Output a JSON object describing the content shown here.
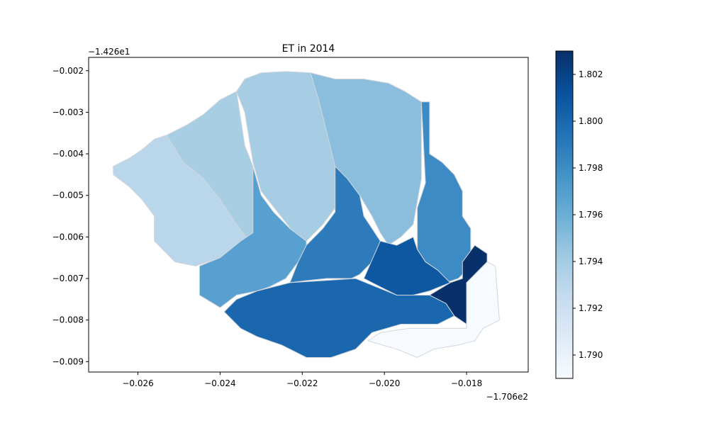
{
  "chart_data": {
    "type": "choropleth",
    "title": "ET in 2014",
    "xlabel": "",
    "ylabel": "",
    "x_offset_label": "−1.706e2",
    "y_offset_label": "−1.426e1",
    "xlim": [
      -0.0272,
      -0.0165
    ],
    "ylim": [
      -0.00925,
      -0.00168
    ],
    "xticks": [
      -0.026,
      -0.024,
      -0.022,
      -0.02,
      -0.018
    ],
    "xtick_labels": [
      "−0.026",
      "−0.024",
      "−0.022",
      "−0.020",
      "−0.018"
    ],
    "yticks": [
      -0.002,
      -0.003,
      -0.004,
      -0.005,
      -0.006,
      -0.007,
      -0.008,
      -0.009
    ],
    "ytick_labels": [
      "−0.002",
      "−0.003",
      "−0.004",
      "−0.005",
      "−0.006",
      "−0.007",
      "−0.008",
      "−0.009"
    ],
    "grid": false,
    "colormap": "Blues",
    "colorbar": {
      "min": 1.789,
      "max": 1.803,
      "ticks": [
        1.79,
        1.792,
        1.794,
        1.796,
        1.798,
        1.8,
        1.802
      ],
      "tick_labels": [
        "1.790",
        "1.792",
        "1.794",
        "1.796",
        "1.798",
        "1.800",
        "1.802"
      ]
    },
    "colors": {
      "edge": "#d0d6dc",
      "frame": "#000000"
    },
    "regions": [
      {
        "id": "west",
        "value": 1.7925,
        "color": "#bad6eb",
        "polygon": [
          [
            -0.0266,
            -0.0043
          ],
          [
            -0.0264,
            -0.0042
          ],
          [
            -0.0262,
            -0.0041
          ],
          [
            -0.0259,
            -0.0039
          ],
          [
            -0.0256,
            -0.00365
          ],
          [
            -0.0253,
            -0.00355
          ],
          [
            -0.0249,
            -0.0039
          ],
          [
            -0.0244,
            -0.0043
          ],
          [
            -0.024,
            -0.0047
          ],
          [
            -0.0235,
            -0.0052
          ],
          [
            -0.023,
            -0.0059
          ],
          [
            -0.0235,
            -0.0062
          ],
          [
            -0.024,
            -0.0065
          ],
          [
            -0.0246,
            -0.0067
          ],
          [
            -0.0251,
            -0.0066
          ],
          [
            -0.0256,
            -0.0061
          ],
          [
            -0.0256,
            -0.0055
          ],
          [
            -0.0259,
            -0.0051
          ],
          [
            -0.0262,
            -0.0048
          ],
          [
            -0.0266,
            -0.0045
          ]
        ]
      },
      {
        "id": "northwest",
        "value": 1.7938,
        "color": "#a8cee4",
        "polygon": [
          [
            -0.0253,
            -0.00355
          ],
          [
            -0.0248,
            -0.0033
          ],
          [
            -0.0244,
            -0.00305
          ],
          [
            -0.024,
            -0.0027
          ],
          [
            -0.0236,
            -0.0025
          ],
          [
            -0.0234,
            -0.0038
          ],
          [
            -0.0232,
            -0.0043
          ],
          [
            -0.0232,
            -0.0062
          ],
          [
            -0.0236,
            -0.0057
          ],
          [
            -0.024,
            -0.0051
          ],
          [
            -0.0244,
            -0.0046
          ],
          [
            -0.0249,
            -0.0042
          ]
        ]
      },
      {
        "id": "north-central",
        "value": 1.7939,
        "color": "#a6cde3",
        "polygon": [
          [
            -0.0236,
            -0.0025
          ],
          [
            -0.0234,
            -0.0022
          ],
          [
            -0.023,
            -0.00205
          ],
          [
            -0.0224,
            -0.00202
          ],
          [
            -0.0218,
            -0.00205
          ],
          [
            -0.0216,
            -0.0026
          ],
          [
            -0.0214,
            -0.0033
          ],
          [
            -0.0212,
            -0.0043
          ],
          [
            -0.0212,
            -0.0053
          ],
          [
            -0.0215,
            -0.0057
          ],
          [
            -0.0219,
            -0.0061
          ],
          [
            -0.0222,
            -0.0059
          ],
          [
            -0.0226,
            -0.0054
          ],
          [
            -0.023,
            -0.0049
          ],
          [
            -0.0232,
            -0.0042
          ],
          [
            -0.0233,
            -0.0036
          ],
          [
            -0.0234,
            -0.003
          ]
        ]
      },
      {
        "id": "north-east",
        "value": 1.7948,
        "color": "#8abedc",
        "polygon": [
          [
            -0.0218,
            -0.00205
          ],
          [
            -0.0212,
            -0.0022
          ],
          [
            -0.0205,
            -0.0022
          ],
          [
            -0.0199,
            -0.0023
          ],
          [
            -0.0195,
            -0.0025
          ],
          [
            -0.0191,
            -0.00275
          ],
          [
            -0.0191,
            -0.0046
          ],
          [
            -0.0193,
            -0.0057
          ],
          [
            -0.0196,
            -0.006
          ],
          [
            -0.0199,
            -0.0062
          ],
          [
            -0.0201,
            -0.0059
          ],
          [
            -0.0203,
            -0.0055
          ],
          [
            -0.0206,
            -0.005
          ],
          [
            -0.0209,
            -0.0046
          ],
          [
            -0.0212,
            -0.0043
          ],
          [
            -0.0214,
            -0.0035
          ],
          [
            -0.0216,
            -0.0027
          ]
        ]
      },
      {
        "id": "east",
        "value": 1.7975,
        "color": "#3d8bc4",
        "polygon": [
          [
            -0.0191,
            -0.00275
          ],
          [
            -0.0189,
            -0.00275
          ],
          [
            -0.0189,
            -0.004
          ],
          [
            -0.0186,
            -0.0042
          ],
          [
            -0.0183,
            -0.0045
          ],
          [
            -0.0181,
            -0.0049
          ],
          [
            -0.0181,
            -0.0055
          ],
          [
            -0.0179,
            -0.0058
          ],
          [
            -0.0179,
            -0.0067
          ],
          [
            -0.0182,
            -0.007
          ],
          [
            -0.0185,
            -0.0071
          ],
          [
            -0.0187,
            -0.0068
          ],
          [
            -0.019,
            -0.0066
          ],
          [
            -0.0192,
            -0.0063
          ],
          [
            -0.0192,
            -0.0053
          ],
          [
            -0.019,
            -0.0047
          ]
        ]
      },
      {
        "id": "mid-west",
        "value": 1.7963,
        "color": "#58a0cf",
        "polygon": [
          [
            -0.0232,
            -0.0043
          ],
          [
            -0.023,
            -0.005
          ],
          [
            -0.0227,
            -0.0054
          ],
          [
            -0.0223,
            -0.0058
          ],
          [
            -0.0219,
            -0.0061
          ],
          [
            -0.0219,
            -0.0063
          ],
          [
            -0.0221,
            -0.0066
          ],
          [
            -0.0224,
            -0.007
          ],
          [
            -0.0228,
            -0.0072
          ],
          [
            -0.0231,
            -0.0073
          ],
          [
            -0.0236,
            -0.0074
          ],
          [
            -0.024,
            -0.0077
          ],
          [
            -0.0245,
            -0.0074
          ],
          [
            -0.0245,
            -0.0067
          ],
          [
            -0.024,
            -0.0065
          ],
          [
            -0.0235,
            -0.0061
          ],
          [
            -0.0232,
            -0.0059
          ]
        ]
      },
      {
        "id": "center",
        "value": 1.7985,
        "color": "#2e7bbc",
        "polygon": [
          [
            -0.0212,
            -0.0043
          ],
          [
            -0.0209,
            -0.0046
          ],
          [
            -0.0206,
            -0.005
          ],
          [
            -0.0205,
            -0.0055
          ],
          [
            -0.0203,
            -0.0058
          ],
          [
            -0.0201,
            -0.0061
          ],
          [
            -0.0203,
            -0.0066
          ],
          [
            -0.0206,
            -0.0069
          ],
          [
            -0.0208,
            -0.007
          ],
          [
            -0.0214,
            -0.007
          ],
          [
            -0.0219,
            -0.00705
          ],
          [
            -0.0223,
            -0.0071
          ],
          [
            -0.0221,
            -0.0066
          ],
          [
            -0.0219,
            -0.0062
          ],
          [
            -0.0215,
            -0.0058
          ],
          [
            -0.0212,
            -0.0054
          ]
        ]
      },
      {
        "id": "south-east",
        "value": 1.8002,
        "color": "#0e58a1",
        "polygon": [
          [
            -0.0201,
            -0.0061
          ],
          [
            -0.0197,
            -0.0062
          ],
          [
            -0.0193,
            -0.006
          ],
          [
            -0.0192,
            -0.0063
          ],
          [
            -0.019,
            -0.0066
          ],
          [
            -0.0187,
            -0.0068
          ],
          [
            -0.0184,
            -0.0071
          ],
          [
            -0.0189,
            -0.0073
          ],
          [
            -0.0193,
            -0.0074
          ],
          [
            -0.0197,
            -0.0074
          ],
          [
            -0.0201,
            -0.0072
          ],
          [
            -0.0205,
            -0.007
          ]
        ]
      },
      {
        "id": "south",
        "value": 1.7994,
        "color": "#1b67ad",
        "polygon": [
          [
            -0.0223,
            -0.0071
          ],
          [
            -0.0215,
            -0.00705
          ],
          [
            -0.0207,
            -0.007
          ],
          [
            -0.0202,
            -0.0072
          ],
          [
            -0.0197,
            -0.0074
          ],
          [
            -0.0189,
            -0.0074
          ],
          [
            -0.0185,
            -0.0076
          ],
          [
            -0.0183,
            -0.0079
          ],
          [
            -0.0187,
            -0.0081
          ],
          [
            -0.0196,
            -0.0081
          ],
          [
            -0.0203,
            -0.0083
          ],
          [
            -0.0207,
            -0.0087
          ],
          [
            -0.0213,
            -0.0089
          ],
          [
            -0.0219,
            -0.0089
          ],
          [
            -0.0225,
            -0.0086
          ],
          [
            -0.0231,
            -0.0084
          ],
          [
            -0.0235,
            -0.0082
          ],
          [
            -0.0239,
            -0.0078
          ],
          [
            -0.0236,
            -0.0075
          ],
          [
            -0.0231,
            -0.0073
          ]
        ]
      },
      {
        "id": "south-east-max",
        "value": 1.8029,
        "color": "#08306b",
        "polygon": [
          [
            -0.0178,
            -0.0062
          ],
          [
            -0.0175,
            -0.0064
          ],
          [
            -0.0175,
            -0.0066
          ],
          [
            -0.0178,
            -0.0069
          ],
          [
            -0.018,
            -0.0071
          ],
          [
            -0.018,
            -0.0081
          ],
          [
            -0.0183,
            -0.0079
          ],
          [
            -0.0185,
            -0.0076
          ],
          [
            -0.0189,
            -0.0074
          ],
          [
            -0.0184,
            -0.0071
          ],
          [
            -0.0181,
            -0.007
          ],
          [
            -0.0181,
            -0.0066
          ]
        ]
      },
      {
        "id": "south-east-min",
        "value": 1.7891,
        "color": "#f7fbff",
        "polygon": [
          [
            -0.0175,
            -0.0066
          ],
          [
            -0.0173,
            -0.0067
          ],
          [
            -0.0172,
            -0.008
          ],
          [
            -0.0176,
            -0.0082
          ],
          [
            -0.0178,
            -0.0085
          ],
          [
            -0.0182,
            -0.0086
          ],
          [
            -0.0188,
            -0.0087
          ],
          [
            -0.0192,
            -0.0089
          ],
          [
            -0.0197,
            -0.0087
          ],
          [
            -0.0204,
            -0.0085
          ],
          [
            -0.0201,
            -0.0083
          ],
          [
            -0.0194,
            -0.0082
          ],
          [
            -0.0186,
            -0.0082
          ],
          [
            -0.018,
            -0.0082
          ],
          [
            -0.018,
            -0.0071
          ],
          [
            -0.0178,
            -0.0069
          ]
        ]
      }
    ]
  }
}
